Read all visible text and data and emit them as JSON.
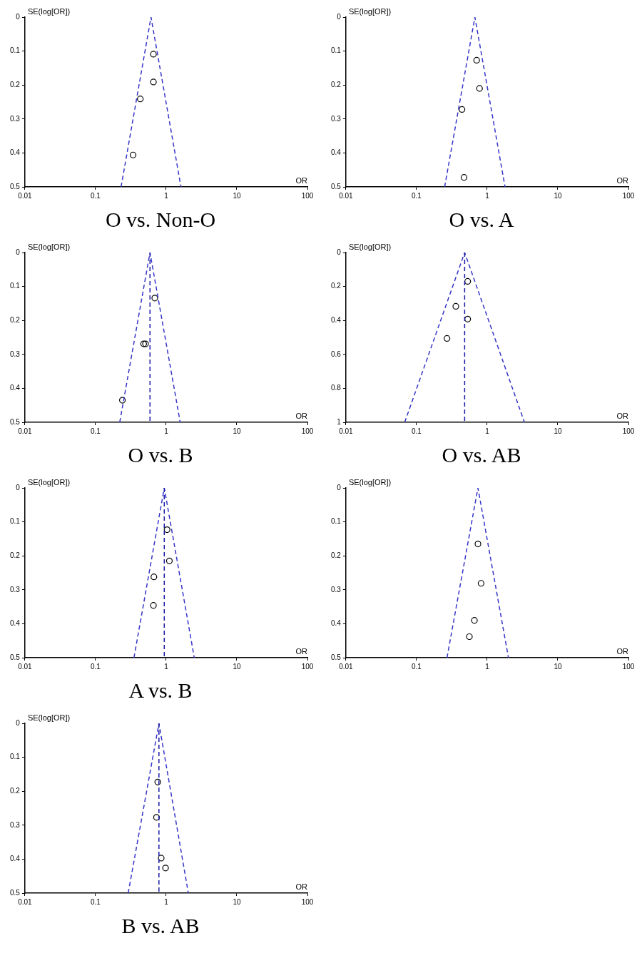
{
  "chart_data": [
    {
      "type": "scatter",
      "title": "O vs. Non-O",
      "xlabel": "OR",
      "ylabel": "SE(log[OR])",
      "log": "x",
      "xlim": [
        0.01,
        100
      ],
      "xticks": [
        0.01,
        0.1,
        1,
        10,
        100
      ],
      "ylim": [
        0.5,
        0
      ],
      "yticks": [
        0,
        0.1,
        0.2,
        0.3,
        0.4,
        0.5
      ],
      "series": [
        {
          "type": "line",
          "color": "#3535c8",
          "line_style": "dashed",
          "marker": "none",
          "x": [
            0.23,
            0.61,
            1.62
          ],
          "values": [
            0.5,
            0,
            0.5
          ]
        },
        {
          "type": "scatter",
          "color": "#000000",
          "marker": "circle",
          "x": [
            0.66,
            0.66,
            0.43,
            0.34
          ],
          "values": [
            0.109,
            0.191,
            0.241,
            0.406
          ]
        }
      ]
    },
    {
      "type": "scatter",
      "title": "O vs. A",
      "xlabel": "OR",
      "ylabel": "SE(log[OR])",
      "log": "x",
      "xlim": [
        0.01,
        100
      ],
      "xticks": [
        0.01,
        0.1,
        1,
        10,
        100
      ],
      "ylim": [
        0.5,
        0
      ],
      "yticks": [
        0,
        0.1,
        0.2,
        0.3,
        0.4,
        0.5
      ],
      "series": [
        {
          "type": "line",
          "color": "#3535c8",
          "line_style": "dashed",
          "marker": "none",
          "x": [
            0.25,
            0.67,
            1.79
          ],
          "values": [
            0.5,
            0,
            0.5
          ]
        },
        {
          "type": "scatter",
          "color": "#000000",
          "marker": "circle",
          "x": [
            0.71,
            0.78,
            0.44,
            0.47
          ],
          "values": [
            0.127,
            0.21,
            0.272,
            0.472
          ]
        }
      ]
    },
    {
      "type": "scatter",
      "title": "O vs. B",
      "xlabel": "OR",
      "ylabel": "SE(log[OR])",
      "log": "x",
      "xlim": [
        0.01,
        100
      ],
      "xticks": [
        0.01,
        0.1,
        1,
        10,
        100
      ],
      "ylim": [
        0.5,
        0
      ],
      "yticks": [
        0,
        0.1,
        0.2,
        0.3,
        0.4,
        0.5
      ],
      "ref_lines": [
        {
          "axis": "x",
          "value": 0.59,
          "color": "#1a1aa6",
          "line_style": "dashed"
        }
      ],
      "series": [
        {
          "type": "line",
          "color": "#3535c8",
          "line_style": "dashed",
          "marker": "none",
          "x": [
            0.22,
            0.59,
            1.58
          ],
          "values": [
            0.5,
            0,
            0.5
          ]
        },
        {
          "type": "scatter",
          "color": "#000000",
          "marker": "circle",
          "x": [
            0.69,
            0.51,
            0.48,
            0.24
          ],
          "values": [
            0.134,
            0.269,
            0.269,
            0.435
          ]
        }
      ]
    },
    {
      "type": "scatter",
      "title": "O vs. AB",
      "xlabel": "OR",
      "ylabel": "SE(log[OR])",
      "log": "x",
      "xlim": [
        0.01,
        100
      ],
      "xticks": [
        0.01,
        0.1,
        1,
        10,
        100
      ],
      "ylim": [
        1,
        0
      ],
      "yticks": [
        0,
        0.2,
        0.4,
        0.6,
        0.8,
        1
      ],
      "ref_lines": [
        {
          "axis": "x",
          "value": 0.48,
          "color": "#1a1aa6",
          "line_style": "dashed"
        }
      ],
      "series": [
        {
          "type": "line",
          "color": "#3535c8",
          "line_style": "dashed",
          "marker": "none",
          "x": [
            0.068,
            0.48,
            3.37
          ],
          "values": [
            1,
            0,
            1
          ]
        },
        {
          "type": "scatter",
          "color": "#000000",
          "marker": "circle",
          "x": [
            0.53,
            0.36,
            0.53,
            0.27
          ],
          "values": [
            0.17,
            0.317,
            0.392,
            0.506
          ]
        }
      ]
    },
    {
      "type": "scatter",
      "title": "A vs. B",
      "xlabel": "OR",
      "ylabel": "SE(log[OR])",
      "log": "x",
      "xlim": [
        0.01,
        100
      ],
      "xticks": [
        0.01,
        0.1,
        1,
        10,
        100
      ],
      "ylim": [
        0.5,
        0
      ],
      "yticks": [
        0,
        0.1,
        0.2,
        0.3,
        0.4,
        0.5
      ],
      "ref_lines": [
        {
          "axis": "x",
          "value": 0.94,
          "color": "#1a1aa6",
          "line_style": "dashed"
        }
      ],
      "series": [
        {
          "type": "line",
          "color": "#3535c8",
          "line_style": "dashed",
          "marker": "none",
          "x": [
            0.35,
            0.94,
            2.5
          ],
          "values": [
            0.5,
            0,
            0.5
          ]
        },
        {
          "type": "scatter",
          "color": "#000000",
          "marker": "circle",
          "x": [
            1.03,
            1.11,
            0.67,
            0.66
          ],
          "values": [
            0.123,
            0.215,
            0.262,
            0.346
          ]
        }
      ]
    },
    {
      "type": "scatter",
      "xlabel": "OR",
      "ylabel": "SE(log[OR])",
      "log": "x",
      "xlim": [
        0.01,
        100
      ],
      "xticks": [
        0.01,
        0.1,
        1,
        10,
        100
      ],
      "ylim": [
        0.5,
        0
      ],
      "yticks": [
        0,
        0.1,
        0.2,
        0.3,
        0.4,
        0.5
      ],
      "series": [
        {
          "type": "line",
          "color": "#3535c8",
          "line_style": "dashed",
          "marker": "none",
          "x": [
            0.27,
            0.74,
            2.0
          ],
          "values": [
            0.5,
            0,
            0.5
          ]
        },
        {
          "type": "scatter",
          "color": "#000000",
          "marker": "circle",
          "x": [
            0.74,
            0.82,
            0.66,
            0.56
          ],
          "values": [
            0.165,
            0.281,
            0.39,
            0.438
          ]
        }
      ]
    },
    {
      "type": "scatter",
      "title": "B vs. AB",
      "xlabel": "OR",
      "ylabel": "SE(log[OR])",
      "log": "x",
      "xlim": [
        0.01,
        100
      ],
      "xticks": [
        0.01,
        0.1,
        1,
        10,
        100
      ],
      "ylim": [
        0.5,
        0
      ],
      "yticks": [
        0,
        0.1,
        0.2,
        0.3,
        0.4,
        0.5
      ],
      "ref_lines": [
        {
          "axis": "x",
          "value": 0.79,
          "color": "#1a1aa6",
          "line_style": "dashed"
        }
      ],
      "series": [
        {
          "type": "line",
          "color": "#3535c8",
          "line_style": "dashed",
          "marker": "none",
          "x": [
            0.29,
            0.79,
            2.06
          ],
          "values": [
            0.5,
            0,
            0.5
          ]
        },
        {
          "type": "scatter",
          "color": "#000000",
          "marker": "circle",
          "x": [
            0.76,
            0.73,
            0.85,
            0.98
          ],
          "values": [
            0.173,
            0.277,
            0.397,
            0.426
          ]
        }
      ]
    }
  ]
}
